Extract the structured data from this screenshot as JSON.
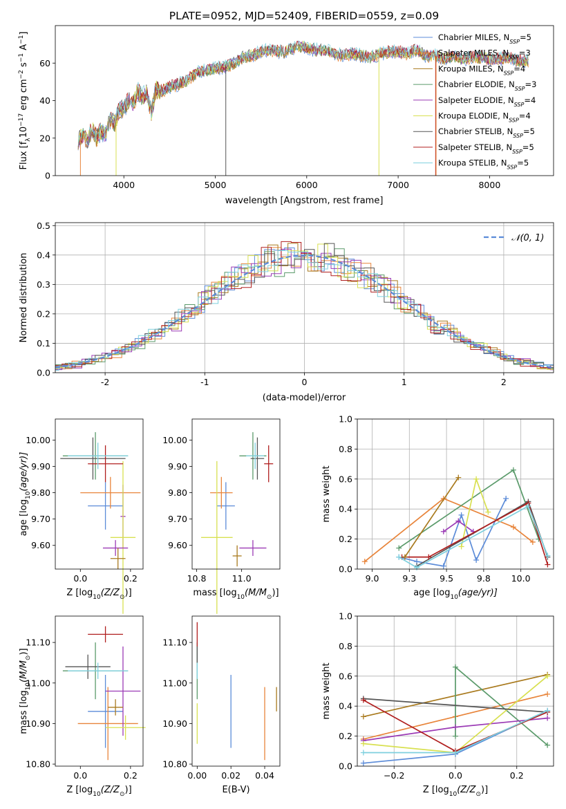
{
  "title": "PLATE=0952, MJD=52409, FIBERID=0559, z=0.09",
  "series_styles": [
    {
      "name": "Chabrier MILES",
      "nssp": "5",
      "color": "#5b8bd8"
    },
    {
      "name": "Salpeter MILES",
      "nssp": "3",
      "color": "#e8843a"
    },
    {
      "name": "Kroupa MILES",
      "nssp": "4",
      "color": "#a97a1e"
    },
    {
      "name": "Chabrier ELODIE",
      "nssp": "3",
      "color": "#5a9a6a"
    },
    {
      "name": "Salpeter ELODIE",
      "nssp": "4",
      "color": "#9b3ab5"
    },
    {
      "name": "Kroupa ELODIE",
      "nssp": "4",
      "color": "#d8e050"
    },
    {
      "name": "Chabrier STELIB",
      "nssp": "5",
      "color": "#555555"
    },
    {
      "name": "Salpeter STELIB",
      "nssp": "5",
      "color": "#b01e1e"
    },
    {
      "name": "Kroupa STELIB",
      "nssp": "5",
      "color": "#7ed0de"
    }
  ],
  "chart_data": [
    {
      "id": "spectrum",
      "type": "line",
      "xlabel": "wavelength [Angstrom, rest frame]",
      "ylabel_main": "Flux [f",
      "ylabel_units": " erg cm",
      "xlim": [
        3250,
        8700
      ],
      "ylim": [
        0,
        80
      ],
      "xticks": [
        4000,
        5000,
        6000,
        7000,
        8000
      ],
      "yticks": [
        0,
        20,
        40,
        60
      ],
      "legend_position": "top-right",
      "x": [
        3500,
        3550,
        3600,
        3650,
        3700,
        3750,
        3800,
        3850,
        3900,
        3950,
        4000,
        4050,
        4100,
        4150,
        4200,
        4250,
        4300,
        4350,
        4400,
        4500,
        4600,
        4700,
        4800,
        4900,
        5000,
        5100,
        5200,
        5300,
        5400,
        5500,
        5600,
        5700,
        5800,
        5900,
        6000,
        6100,
        6200,
        6300,
        6400,
        6500,
        6600,
        6700,
        6800,
        6900,
        7000,
        7100,
        7200,
        7300,
        7400,
        7500,
        7600,
        7700,
        7800,
        7900,
        8000,
        8100,
        8200,
        8300,
        8400
      ],
      "y": [
        19,
        22,
        18,
        25,
        20,
        24,
        22,
        30,
        28,
        35,
        36,
        40,
        38,
        45,
        42,
        44,
        33,
        46,
        45,
        47,
        49,
        51,
        55,
        56,
        57,
        58,
        60,
        63,
        64,
        66,
        67,
        66,
        67,
        69,
        68,
        67,
        67,
        65,
        64,
        65,
        64,
        63,
        65,
        66,
        66,
        65,
        67,
        64,
        64,
        62,
        64,
        62,
        63,
        63,
        62,
        62,
        63,
        61,
        61
      ]
    },
    {
      "id": "residuals",
      "type": "line",
      "xlabel": "(data-model)/error",
      "ylabel": "Normed distribution",
      "xlim": [
        -2.5,
        2.5
      ],
      "ylim": [
        0,
        0.51
      ],
      "xticks": [
        -2,
        -1,
        0,
        1,
        2
      ],
      "yticks": [
        0.0,
        0.1,
        0.2,
        0.3,
        0.4,
        0.5
      ],
      "legend_position": "top-right",
      "series": [
        {
          "name": "N(0,1)",
          "legend_text": "𝒩(0, 1)",
          "style": "dashed",
          "color": "#5b8bd8"
        }
      ],
      "grid": true
    },
    {
      "id": "age-vs-z",
      "type": "scatter",
      "xlabel_main": "Z [log",
      "xlabel_sub": "10",
      "xlabel_tail": "(Z/Z",
      "xlabel_end": ")]",
      "ylabel_main": "age  [log",
      "ylabel_sub": "10",
      "ylabel_tail": "(age/yr)]",
      "xlim": [
        -0.1,
        0.25
      ],
      "ylim": [
        9.51,
        10.08
      ],
      "xticks": [
        0.0,
        0.2
      ],
      "yticks": [
        9.6,
        9.7,
        9.8,
        9.9,
        10.0
      ],
      "points": [
        {
          "series": 0,
          "x": 0.1,
          "y": 9.75,
          "xerr": 0.07,
          "yerr": 0.09
        },
        {
          "series": 1,
          "x": 0.12,
          "y": 9.8,
          "xerr": 0.12,
          "yerr": 0.06
        },
        {
          "series": 3,
          "x": 0.06,
          "y": 9.94,
          "xerr": 0.13,
          "yerr": 0.09
        },
        {
          "series": 4,
          "x": 0.17,
          "y": 9.71,
          "xerr": 0.01,
          "yerr": 0.12
        },
        {
          "series": 5,
          "x": 0.17,
          "y": 9.63,
          "xerr": 0.05,
          "yerr": 0.29
        },
        {
          "series": 6,
          "x": 0.05,
          "y": 9.93,
          "xerr": 0.13,
          "yerr": 0.08
        },
        {
          "series": 7,
          "x": 0.1,
          "y": 9.91,
          "xerr": 0.07,
          "yerr": 0.07
        },
        {
          "series": 8,
          "x": 0.07,
          "y": 9.94,
          "xerr": 0.12,
          "yerr": 0.05
        },
        {
          "series": 4,
          "x": 0.14,
          "y": 9.59,
          "xerr": 0.05,
          "yerr": 0.03
        },
        {
          "series": 2,
          "x": 0.15,
          "y": 9.55,
          "xerr": 0.03,
          "yerr": 0.04
        }
      ]
    },
    {
      "id": "age-vs-mass",
      "type": "scatter",
      "xlabel_main": "mass [log",
      "xlabel_sub": "10",
      "xlabel_tail": "(M/M",
      "xlabel_end": ")]",
      "xlim": [
        10.78,
        11.17
      ],
      "ylim": [
        9.51,
        10.08
      ],
      "xticks": [
        10.8,
        11.0
      ],
      "yticks": [
        9.6,
        9.7,
        9.8,
        9.9,
        10.0
      ],
      "points": [
        {
          "series": 0,
          "x": 10.93,
          "y": 9.75,
          "xerr": 0.04,
          "yerr": 0.09
        },
        {
          "series": 1,
          "x": 10.91,
          "y": 9.8,
          "xerr": 0.05,
          "yerr": 0.06
        },
        {
          "series": 3,
          "x": 11.05,
          "y": 9.94,
          "xerr": 0.06,
          "yerr": 0.09
        },
        {
          "series": 4,
          "x": 11.05,
          "y": 9.59,
          "xerr": 0.06,
          "yerr": 0.03
        },
        {
          "series": 5,
          "x": 10.89,
          "y": 9.63,
          "xerr": 0.07,
          "yerr": 0.29
        },
        {
          "series": 6,
          "x": 11.07,
          "y": 9.93,
          "xerr": 0.03,
          "yerr": 0.08
        },
        {
          "series": 7,
          "x": 11.12,
          "y": 9.91,
          "xerr": 0.02,
          "yerr": 0.07
        },
        {
          "series": 8,
          "x": 11.06,
          "y": 9.94,
          "xerr": 0.04,
          "yerr": 0.05
        },
        {
          "series": 2,
          "x": 10.98,
          "y": 9.56,
          "xerr": 0.02,
          "yerr": 0.04
        }
      ]
    },
    {
      "id": "mass-weight-vs-age",
      "type": "line",
      "xlabel_main": "age  [log",
      "xlabel_sub": "10",
      "xlabel_tail": "(age/yr)]",
      "ylabel": "mass weight",
      "xlim": [
        8.9,
        10.22
      ],
      "ylim": [
        0,
        1.0
      ],
      "xticks": [
        9.0,
        9.25,
        9.5,
        9.75,
        10.0
      ],
      "yticks": [
        0.0,
        0.2,
        0.4,
        0.6,
        0.8,
        1.0
      ],
      "grid": true,
      "series": [
        {
          "series": 0,
          "x": [
            9.18,
            9.3,
            9.48,
            9.6,
            9.7,
            9.9
          ],
          "y": [
            0.08,
            0.05,
            0.02,
            0.36,
            0.06,
            0.47
          ]
        },
        {
          "series": 1,
          "x": [
            8.95,
            9.48,
            9.95,
            10.08
          ],
          "y": [
            0.05,
            0.47,
            0.28,
            0.18
          ]
        },
        {
          "series": 3,
          "x": [
            9.18,
            9.95,
            10.12
          ],
          "y": [
            0.14,
            0.66,
            0.2
          ]
        },
        {
          "series": 4,
          "x": [
            9.48,
            9.58,
            9.68
          ],
          "y": [
            0.25,
            0.32,
            0.25
          ]
        },
        {
          "series": 5,
          "x": [
            9.6,
            9.7,
            9.78
          ],
          "y": [
            0.15,
            0.6,
            0.38
          ]
        },
        {
          "series": 6,
          "x": [
            9.3,
            10.05,
            10.18
          ],
          "y": [
            0.02,
            0.45,
            0.08
          ]
        },
        {
          "series": 7,
          "x": [
            9.2,
            9.38,
            10.05,
            10.18
          ],
          "y": [
            0.08,
            0.08,
            0.44,
            0.03
          ]
        },
        {
          "series": 8,
          "x": [
            9.18,
            9.3,
            10.05,
            10.18
          ],
          "y": [
            0.08,
            0.01,
            0.42,
            0.09
          ]
        },
        {
          "series": 2,
          "x": [
            9.22,
            9.58
          ],
          "y": [
            0.08,
            0.61
          ]
        }
      ]
    },
    {
      "id": "mass-vs-z",
      "type": "scatter",
      "xlabel_main": "Z [log",
      "xlabel_sub": "10",
      "xlabel_tail": "(Z/Z",
      "xlabel_end": ")]",
      "ylabel_main": "mass [log",
      "ylabel_sub": "10",
      "ylabel_tail": "(M/M",
      "ylabel_end": ")]",
      "xlim": [
        -0.1,
        0.25
      ],
      "ylim": [
        10.795,
        11.165
      ],
      "xticks": [
        0.0,
        0.2
      ],
      "yticks": [
        10.8,
        10.9,
        11.0,
        11.1
      ],
      "points": [
        {
          "series": 0,
          "x": 0.1,
          "y": 10.93,
          "xerr": 0.07,
          "yerr": 0.09
        },
        {
          "series": 1,
          "x": 0.11,
          "y": 10.9,
          "xerr": 0.12,
          "yerr": 0.09
        },
        {
          "series": 3,
          "x": 0.06,
          "y": 11.03,
          "xerr": 0.13,
          "yerr": 0.07
        },
        {
          "series": 4,
          "x": 0.17,
          "y": 10.98,
          "xerr": 0.07,
          "yerr": 0.11
        },
        {
          "series": 5,
          "x": 0.18,
          "y": 10.89,
          "xerr": 0.08,
          "yerr": 0.03
        },
        {
          "series": 6,
          "x": 0.03,
          "y": 11.04,
          "xerr": 0.09,
          "yerr": 0.03
        },
        {
          "series": 7,
          "x": 0.1,
          "y": 11.12,
          "xerr": 0.07,
          "yerr": 0.02
        },
        {
          "series": 8,
          "x": 0.07,
          "y": 11.03,
          "xerr": 0.12,
          "yerr": 0.02
        },
        {
          "series": 2,
          "x": 0.14,
          "y": 10.94,
          "xerr": 0.03,
          "yerr": 0.02
        }
      ]
    },
    {
      "id": "mass-vs-ebv",
      "type": "scatter",
      "xlabel": "E(B-V)",
      "xlim": [
        -0.003,
        0.049
      ],
      "ylim": [
        10.795,
        11.165
      ],
      "xticks": [
        0.0,
        0.02,
        0.04
      ],
      "yticks": [
        10.8,
        10.9,
        11.0,
        11.1
      ],
      "points": [
        {
          "series": 0,
          "x": 0.02,
          "y": 10.93,
          "xerr": 0.0,
          "yerr": 0.09
        },
        {
          "series": 1,
          "x": 0.04,
          "y": 10.9,
          "xerr": 0.0,
          "yerr": 0.09
        },
        {
          "series": 2,
          "x": 0.047,
          "y": 10.96,
          "xerr": 0.0,
          "yerr": 0.03
        },
        {
          "series": 3,
          "x": 0.0,
          "y": 11.03,
          "xerr": 0.0,
          "yerr": 0.07
        },
        {
          "series": 5,
          "x": 0.0,
          "y": 10.9,
          "xerr": 0.0,
          "yerr": 0.05
        },
        {
          "series": 6,
          "x": 0.0,
          "y": 11.07,
          "xerr": 0.0,
          "yerr": 0.02
        },
        {
          "series": 7,
          "x": 0.0,
          "y": 11.12,
          "xerr": 0.0,
          "yerr": 0.03
        },
        {
          "series": 8,
          "x": 0.0,
          "y": 11.03,
          "xerr": 0.0,
          "yerr": 0.02
        }
      ]
    },
    {
      "id": "mass-weight-vs-z",
      "type": "line",
      "xlabel_main": "Z [log",
      "xlabel_sub": "10",
      "xlabel_tail": "(Z/Z",
      "xlabel_end": ")]",
      "ylabel": "mass weight",
      "xlim": [
        -0.32,
        0.32
      ],
      "ylim": [
        0,
        1.0
      ],
      "xticks": [
        -0.2,
        0.0,
        0.2
      ],
      "yticks": [
        0.0,
        0.2,
        0.4,
        0.6,
        0.8,
        1.0
      ],
      "grid": true,
      "series": [
        {
          "series": 0,
          "x": [
            -0.3,
            0.0,
            0.3
          ],
          "y": [
            0.02,
            0.08,
            0.37
          ]
        },
        {
          "series": 1,
          "x": [
            -0.3,
            0.0,
            0.3
          ],
          "y": [
            0.18,
            0.33,
            0.48
          ]
        },
        {
          "series": 2,
          "x": [
            -0.3,
            0.3
          ],
          "y": [
            0.33,
            0.61
          ]
        },
        {
          "series": 3,
          "x": [
            0.0,
            0.0,
            0.3
          ],
          "y": [
            0.2,
            0.66,
            0.14
          ]
        },
        {
          "series": 4,
          "x": [
            -0.3,
            0.0,
            0.3
          ],
          "y": [
            0.17,
            0.26,
            0.32
          ]
        },
        {
          "series": 5,
          "x": [
            -0.3,
            0.0,
            0.3
          ],
          "y": [
            0.15,
            0.09,
            0.6
          ]
        },
        {
          "series": 6,
          "x": [
            -0.3,
            0.3
          ],
          "y": [
            0.45,
            0.36
          ]
        },
        {
          "series": 7,
          "x": [
            -0.3,
            0.0,
            0.3
          ],
          "y": [
            0.44,
            0.1,
            0.36
          ]
        },
        {
          "series": 8,
          "x": [
            -0.3,
            0.0,
            0.3
          ],
          "y": [
            0.09,
            0.09,
            0.37
          ]
        }
      ]
    }
  ]
}
